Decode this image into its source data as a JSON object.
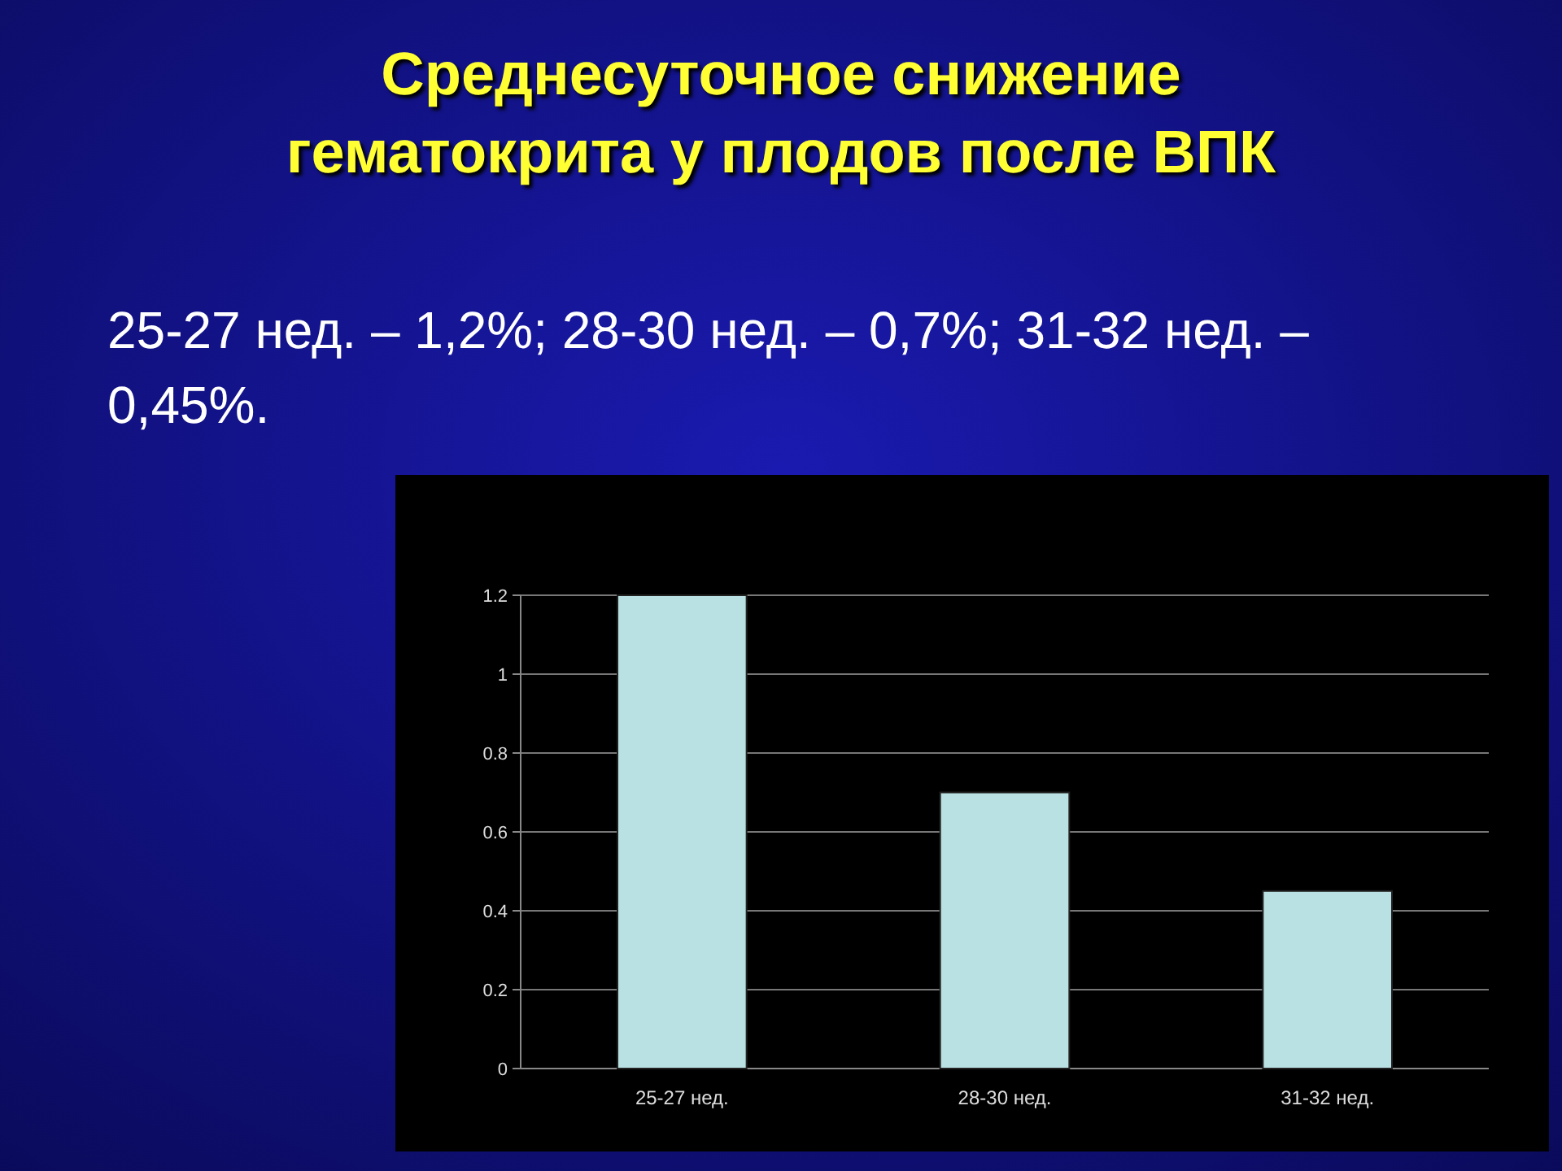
{
  "chart_data": {
    "type": "bar",
    "title": "Среднесуточное снижение гематокрита у плодов после ВПК",
    "subtitle": "25-27 нед. – 1,2%; 28-30 нед. – 0,7%; 31-32 нед. – 0,45%.",
    "categories": [
      "25-27 нед.",
      "28-30 нед.",
      "31-32 нед."
    ],
    "values": [
      1.2,
      0.7,
      0.45
    ],
    "color": "#b9e1e3",
    "ylim": [
      0,
      1.2
    ],
    "yticks": [
      0,
      0.2,
      0.4,
      0.6,
      0.8,
      1,
      1.2
    ],
    "grid": "y"
  }
}
